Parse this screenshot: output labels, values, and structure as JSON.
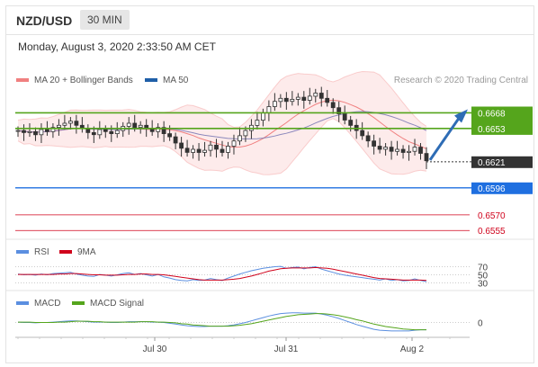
{
  "header": {
    "pair": "NZD/USD",
    "timeframe": "30 MIN",
    "datetime": "Monday, August 3, 2020 2:33:50 AM CET"
  },
  "colors": {
    "bollinger": "#f08080",
    "ma50": "#1f5fa8",
    "green_level": "#55a51c",
    "blue_level": "#1f6fe0",
    "red_level": "#d0021b",
    "current_tag": "#333333",
    "rsi": "#5b8fe0",
    "rsi_9ma": "#d0021b",
    "macd": "#5b8fe0",
    "macd_signal": "#55a51c"
  },
  "chart_data": [
    {
      "type": "candlestick",
      "panel": "price",
      "legend": [
        {
          "name": "MA 20 + Bollinger Bands",
          "color": "#f08080"
        },
        {
          "name": "MA 50",
          "color": "#1f5fa8"
        }
      ],
      "watermark": "Research © 2020 Trading Central",
      "x_ticks": [
        "Jul 30",
        "Jul 31",
        "Aug 2"
      ],
      "y_range": [
        0.655,
        0.669
      ],
      "close_series": [
        0.6651,
        0.6649,
        0.665,
        0.6647,
        0.6652,
        0.665,
        0.6654,
        0.6656,
        0.6658,
        0.666,
        0.6656,
        0.6653,
        0.6649,
        0.6647,
        0.6652,
        0.665,
        0.6648,
        0.6651,
        0.6655,
        0.6658,
        0.6654,
        0.6656,
        0.6653,
        0.665,
        0.6654,
        0.6648,
        0.6645,
        0.6639,
        0.6634,
        0.663,
        0.6633,
        0.663,
        0.6632,
        0.6637,
        0.6633,
        0.663,
        0.6636,
        0.6641,
        0.6646,
        0.6651,
        0.6656,
        0.6661,
        0.6668,
        0.6674,
        0.6679,
        0.6682,
        0.6679,
        0.6681,
        0.6683,
        0.668,
        0.6684,
        0.6687,
        0.6682,
        0.6678,
        0.6673,
        0.6667,
        0.6661,
        0.6656,
        0.6651,
        0.6646,
        0.6641,
        0.6636,
        0.6633,
        0.6635,
        0.6631,
        0.6633,
        0.663,
        0.6631,
        0.6635,
        0.6629,
        0.6622
      ],
      "levels": {
        "resistance": [
          0.6668,
          0.6653
        ],
        "current": 0.6621,
        "pivot": 0.6596,
        "support": [
          0.657,
          0.6555
        ]
      }
    },
    {
      "type": "line",
      "panel": "rsi",
      "series": [
        {
          "name": "RSI",
          "color": "#5b8fe0"
        },
        {
          "name": "9MA",
          "color": "#d0021b"
        }
      ],
      "y_ticks": [
        "70",
        "50",
        "30"
      ],
      "rsi_values": [
        52,
        50,
        51,
        49,
        52,
        50,
        53,
        54,
        55,
        56,
        52,
        49,
        47,
        46,
        51,
        49,
        47,
        50,
        53,
        55,
        51,
        53,
        50,
        47,
        51,
        45,
        42,
        38,
        36,
        35,
        38,
        36,
        37,
        41,
        38,
        36,
        42,
        47,
        52,
        56,
        60,
        63,
        66,
        68,
        70,
        71,
        66,
        68,
        69,
        65,
        68,
        70,
        64,
        60,
        56,
        52,
        49,
        47,
        45,
        43,
        41,
        39,
        37,
        40,
        36,
        38,
        35,
        36,
        40,
        36,
        33
      ],
      "ma9_values": [
        51,
        51,
        51,
        51,
        51,
        51,
        51,
        52,
        52,
        53,
        53,
        52,
        51,
        50,
        50,
        49,
        49,
        49,
        50,
        51,
        51,
        52,
        52,
        51,
        51,
        50,
        48,
        46,
        44,
        42,
        40,
        38,
        37,
        37,
        37,
        37,
        38,
        39,
        41,
        44,
        47,
        51,
        55,
        59,
        62,
        65,
        66,
        67,
        67,
        67,
        67,
        68,
        67,
        66,
        64,
        61,
        58,
        55,
        52,
        49,
        46,
        43,
        41,
        40,
        39,
        38,
        37,
        37,
        37,
        37,
        36
      ]
    },
    {
      "type": "line",
      "panel": "macd",
      "series": [
        {
          "name": "MACD",
          "color": "#5b8fe0"
        },
        {
          "name": "MACD Signal",
          "color": "#55a51c"
        }
      ],
      "y_ticks": [
        "0"
      ],
      "macd_values": [
        0.0001,
        0.0,
        0.0,
        -0.0001,
        0.0,
        0.0,
        0.0001,
        0.0002,
        0.0003,
        0.0004,
        0.0004,
        0.0003,
        0.0002,
        0.0001,
        0.0001,
        0.0001,
        0.0,
        0.0,
        0.0001,
        0.0002,
        0.0002,
        0.0002,
        0.0002,
        0.0001,
        0.0001,
        0.0,
        -0.0002,
        -0.0004,
        -0.0006,
        -0.0008,
        -0.0009,
        -0.001,
        -0.001,
        -0.0009,
        -0.0009,
        -0.0009,
        -0.0008,
        -0.0006,
        -0.0003,
        0.0,
        0.0004,
        0.0008,
        0.0012,
        0.0016,
        0.0019,
        0.0022,
        0.0023,
        0.0024,
        0.0024,
        0.0023,
        0.0023,
        0.0023,
        0.0021,
        0.0018,
        0.0014,
        0.001,
        0.0005,
        0.0,
        -0.0005,
        -0.0009,
        -0.0013,
        -0.0017,
        -0.0019,
        -0.002,
        -0.0021,
        -0.0021,
        -0.0021,
        -0.0021,
        -0.0019,
        -0.0018,
        -0.0018
      ],
      "signal_values": [
        0.0001,
        0.0001,
        0.0001,
        0.0,
        0.0,
        0.0,
        0.0,
        0.0001,
        0.0001,
        0.0002,
        0.0003,
        0.0003,
        0.0003,
        0.0002,
        0.0002,
        0.0001,
        0.0001,
        0.0001,
        0.0001,
        0.0001,
        0.0001,
        0.0002,
        0.0002,
        0.0002,
        0.0001,
        0.0001,
        0.0,
        -0.0001,
        -0.0003,
        -0.0004,
        -0.0006,
        -0.0007,
        -0.0008,
        -0.0009,
        -0.0009,
        -0.0009,
        -0.0009,
        -0.0008,
        -0.0007,
        -0.0005,
        -0.0003,
        0.0,
        0.0003,
        0.0006,
        0.0009,
        0.0012,
        0.0015,
        0.0017,
        0.0019,
        0.002,
        0.0021,
        0.0022,
        0.0022,
        0.0021,
        0.0019,
        0.0017,
        0.0014,
        0.0011,
        0.0007,
        0.0004,
        0.0,
        -0.0004,
        -0.0007,
        -0.001,
        -0.0012,
        -0.0014,
        -0.0016,
        -0.0017,
        -0.0018,
        -0.0018,
        -0.0018
      ]
    }
  ]
}
